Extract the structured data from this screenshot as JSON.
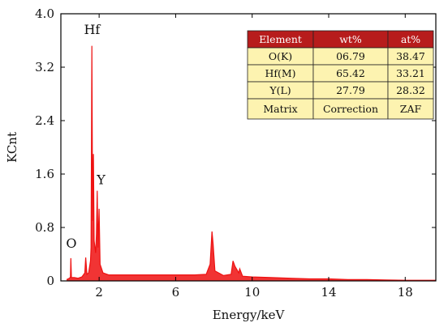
{
  "chart_data": {
    "type": "line",
    "xlabel": "Energy/keV",
    "ylabel": "KCnt",
    "xlim": [
      0,
      19.6
    ],
    "ylim": [
      0,
      4.0
    ],
    "x_ticks": [
      2,
      6,
      10,
      14,
      18
    ],
    "y_ticks": [
      0,
      0.8,
      1.6,
      2.4,
      3.2,
      4.0
    ],
    "y_tick_labels": [
      "0",
      "0.8",
      "1.6",
      "2.4",
      "3.2",
      "4.0"
    ],
    "grid": false,
    "series": [
      {
        "color": "#ee1111",
        "points": [
          [
            0.3,
            0.02
          ],
          [
            0.45,
            0.04
          ],
          [
            0.5,
            0.06
          ],
          [
            0.52,
            0.34
          ],
          [
            0.55,
            0.05
          ],
          [
            0.7,
            0.05
          ],
          [
            0.9,
            0.04
          ],
          [
            1.1,
            0.06
          ],
          [
            1.25,
            0.12
          ],
          [
            1.3,
            0.35
          ],
          [
            1.36,
            0.1
          ],
          [
            1.45,
            0.12
          ],
          [
            1.55,
            0.3
          ],
          [
            1.58,
            0.5
          ],
          [
            1.62,
            3.52
          ],
          [
            1.66,
            0.9
          ],
          [
            1.7,
            1.9
          ],
          [
            1.74,
            0.6
          ],
          [
            1.78,
            0.5
          ],
          [
            1.82,
            0.42
          ],
          [
            1.86,
            0.7
          ],
          [
            1.9,
            1.35
          ],
          [
            1.94,
            0.5
          ],
          [
            2.0,
            1.08
          ],
          [
            2.05,
            0.25
          ],
          [
            2.2,
            0.12
          ],
          [
            2.5,
            0.09
          ],
          [
            3.0,
            0.09
          ],
          [
            4.0,
            0.09
          ],
          [
            5.0,
            0.09
          ],
          [
            6.0,
            0.09
          ],
          [
            7.0,
            0.09
          ],
          [
            7.6,
            0.1
          ],
          [
            7.8,
            0.25
          ],
          [
            7.9,
            0.74
          ],
          [
            7.96,
            0.55
          ],
          [
            8.05,
            0.15
          ],
          [
            8.5,
            0.08
          ],
          [
            8.9,
            0.1
          ],
          [
            9.0,
            0.3
          ],
          [
            9.1,
            0.22
          ],
          [
            9.3,
            0.12
          ],
          [
            9.35,
            0.18
          ],
          [
            9.5,
            0.07
          ],
          [
            10.0,
            0.06
          ],
          [
            11.0,
            0.05
          ],
          [
            12.0,
            0.04
          ],
          [
            13.0,
            0.03
          ],
          [
            14.0,
            0.03
          ],
          [
            15.0,
            0.02
          ],
          [
            16.0,
            0.02
          ],
          [
            17.0,
            0.015
          ],
          [
            18.0,
            0.01
          ],
          [
            19.6,
            0.01
          ]
        ]
      }
    ],
    "annotations": [
      {
        "text": "Hf",
        "x": 1.63,
        "y": 3.7
      },
      {
        "text": "Y",
        "x": 2.1,
        "y": 1.45
      },
      {
        "text": "O",
        "x": 0.55,
        "y": 0.5
      }
    ],
    "table": {
      "headers": [
        "Element",
        "wt%",
        "at%"
      ],
      "rows": [
        [
          "O(K)",
          "06.79",
          "38.47"
        ],
        [
          "Hf(M)",
          "65.42",
          "33.21"
        ],
        [
          "Y(L)",
          "27.79",
          "28.32"
        ],
        [
          "Matrix",
          "Correction",
          "ZAF"
        ]
      ],
      "header_color": "#b71c1c",
      "body_color": "#fdf3b0"
    }
  }
}
